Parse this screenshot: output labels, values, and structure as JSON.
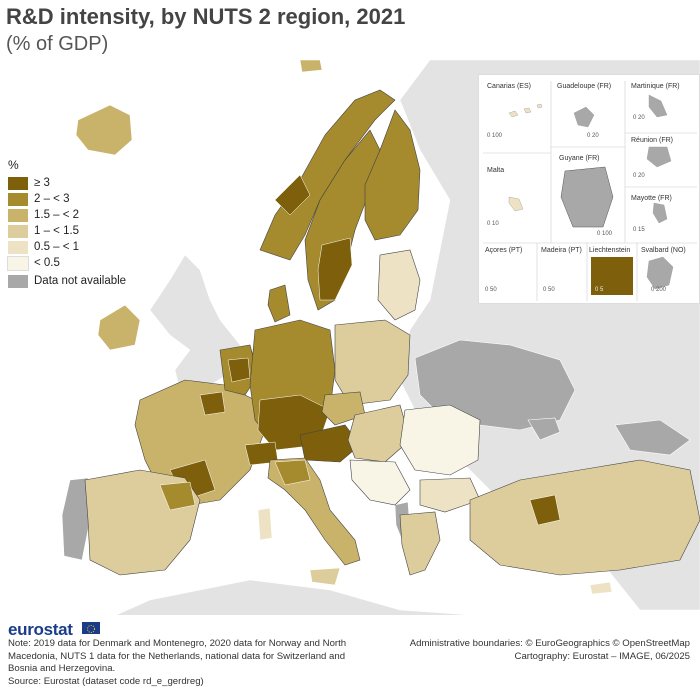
{
  "title": "R&D intensity, by NUTS 2 region, 2021",
  "subtitle": "(% of GDP)",
  "legend": {
    "unit": "%",
    "classes": [
      {
        "label": "≥ 3",
        "color": "#7d5f0c"
      },
      {
        "label": "2 – < 3",
        "color": "#a58a2e"
      },
      {
        "label": "1.5 – < 2",
        "color": "#c9b36a"
      },
      {
        "label": "1 – < 1.5",
        "color": "#ddcd9c"
      },
      {
        "label": "0.5 – < 1",
        "color": "#ede3c4"
      },
      {
        "label": "< 0.5",
        "color": "#f8f4e6"
      }
    ],
    "na": {
      "label": "Data not available",
      "color": "#a8a8a8"
    }
  },
  "insets": {
    "canarias": {
      "title": "Canarias (ES)",
      "scale": "0    100"
    },
    "guadeloupe": {
      "title": "Guadeloupe (FR)",
      "scale": "0  20"
    },
    "martinique": {
      "title": "Martinique (FR)",
      "scale": "0  20"
    },
    "reunion": {
      "title": "Réunion (FR)",
      "scale": "0  20"
    },
    "malta": {
      "title": "Malta",
      "scale": "0  10"
    },
    "guyane": {
      "title": "Guyane (FR)",
      "scale": "0    100"
    },
    "mayotte": {
      "title": "Mayotte (FR)",
      "scale": "0  15"
    },
    "acores": {
      "title": "Açores (PT)",
      "scale": "0  50"
    },
    "madeira": {
      "title": "Madeira (PT)",
      "scale": "0   50"
    },
    "liechtenstein": {
      "title": "Liechtenstein",
      "scale": "0  5"
    },
    "svalbard": {
      "title": "Svalbard (NO)",
      "scale": "0    200"
    }
  },
  "footer": {
    "logo": "eurostat",
    "note": "Note: 2019 data for Denmark and Montenegro, 2020 data for Norway and North Macedonia, NUTS 1 data for the Netherlands, national data for Switzerland and Bosnia and Herzegovina.",
    "source": "Source: Eurostat (dataset code rd_e_gerdreg)",
    "boundaries": "Administrative boundaries: © EuroGeographics © OpenStreetMap",
    "cartography": "Cartography: Eurostat – IMAGE, 06/2025"
  }
}
